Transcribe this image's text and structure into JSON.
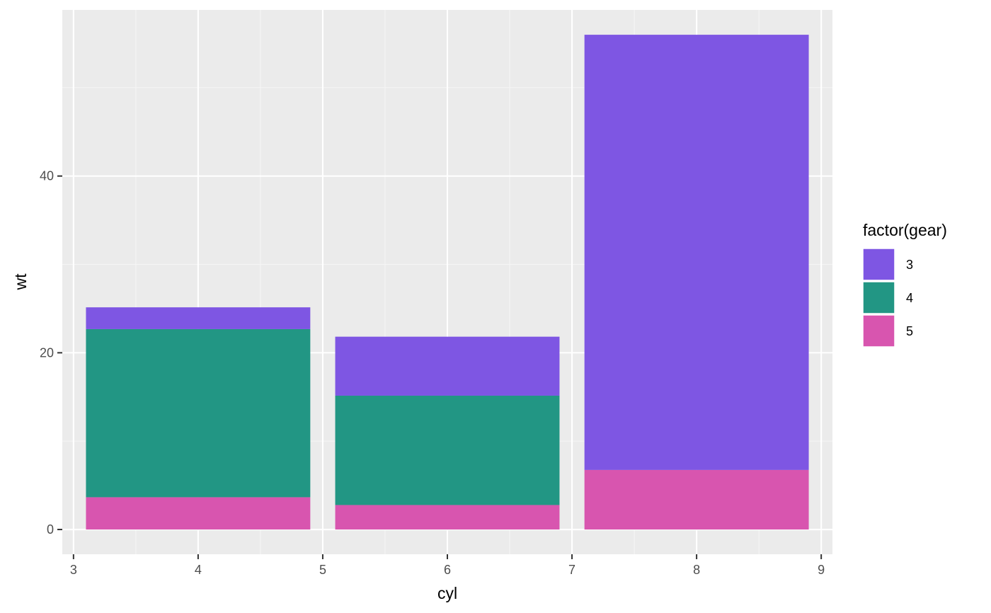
{
  "chart_data": {
    "type": "bar",
    "stacked": true,
    "xlabel": "cyl",
    "ylabel": "wt",
    "x": [
      4,
      6,
      8
    ],
    "bar_width": 1.8,
    "xlim": [
      2.91,
      9.09
    ],
    "ylim": [
      -2.8,
      58.8
    ],
    "x_ticks": [
      3,
      4,
      5,
      6,
      7,
      8,
      9
    ],
    "y_ticks": [
      0,
      20,
      40
    ],
    "grid": true,
    "legend": {
      "title": "factor(gear)",
      "position": "right",
      "entries": [
        "3",
        "4",
        "5"
      ]
    },
    "stack_order": [
      "5",
      "4",
      "3"
    ],
    "series": [
      {
        "name": "3",
        "color": "#7E56E3",
        "values": [
          2.465,
          6.675,
          49.249
        ]
      },
      {
        "name": "4",
        "color": "#229684",
        "values": [
          19.025,
          12.375,
          0
        ]
      },
      {
        "name": "5",
        "color": "#D855AF",
        "values": [
          3.653,
          2.77,
          6.74
        ]
      }
    ],
    "colors": {
      "panel_background": "#EBEBEB",
      "grid_major": "#FFFFFF",
      "grid_minor": "#F5F5F5",
      "tick": "#333333"
    }
  }
}
